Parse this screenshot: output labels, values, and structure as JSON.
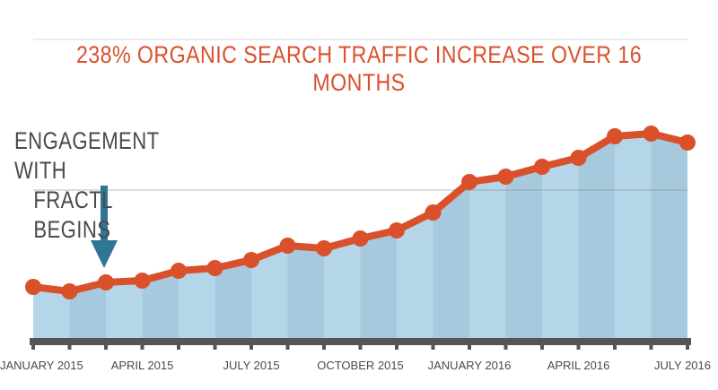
{
  "chart_data": {
    "type": "area",
    "title": "238% ORGANIC SEARCH TRAFFIC INCREASE OVER 16 MONTHS",
    "xlabel": "",
    "ylabel": "",
    "categories": [
      "Jan 2015",
      "Feb 2015",
      "Mar 2015",
      "Apr 2015",
      "May 2015",
      "Jun 2015",
      "Jul 2015",
      "Aug 2015",
      "Sep 2015",
      "Oct 2015",
      "Nov 2015",
      "Dec 2015",
      "Jan 2016",
      "Feb 2016",
      "Mar 2016",
      "Apr 2016",
      "May 2016",
      "Jun 2016",
      "Jul 2016"
    ],
    "tick_labels": [
      "JANUARY 2015",
      "APRIL 2015",
      "JULY 2015",
      "OCTOBER 2015",
      "JANUARY 2016",
      "APRIL 2016",
      "JULY 2016"
    ],
    "tick_indices": [
      0,
      3,
      6,
      9,
      12,
      15,
      18
    ],
    "series": [
      {
        "values": [
          320,
          325,
          315,
          313,
          302,
          299,
          290,
          274,
          277,
          266,
          257,
          237,
          203,
          197,
          186,
          176,
          152,
          149,
          159
        ]
      }
    ],
    "ylim": [
      375,
      100
    ],
    "value_note": "relative traffic (unlabeled axis, screen-estimated)",
    "grid": "single horizontal gridline",
    "colors": {
      "line": "#d9502b",
      "area_light": "#b5d6e8",
      "area_dark": "#a7c9dd",
      "axis": "#555555",
      "arrow": "#2e7596"
    }
  },
  "annotation": {
    "line1": "ENGAGEMENT WITH",
    "line2": "FRACTL BEGINS",
    "arrow_at_index": 2
  }
}
